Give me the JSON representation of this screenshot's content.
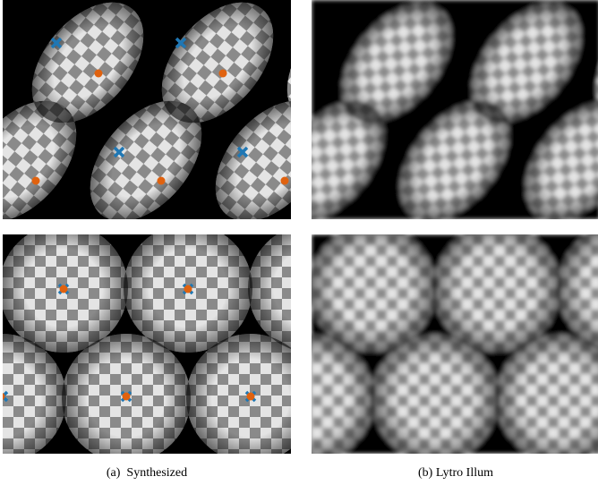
{
  "panels": [
    {
      "caption": "(a)  Synthesized"
    },
    {
      "caption": "(b) Lytro Illum"
    }
  ]
}
